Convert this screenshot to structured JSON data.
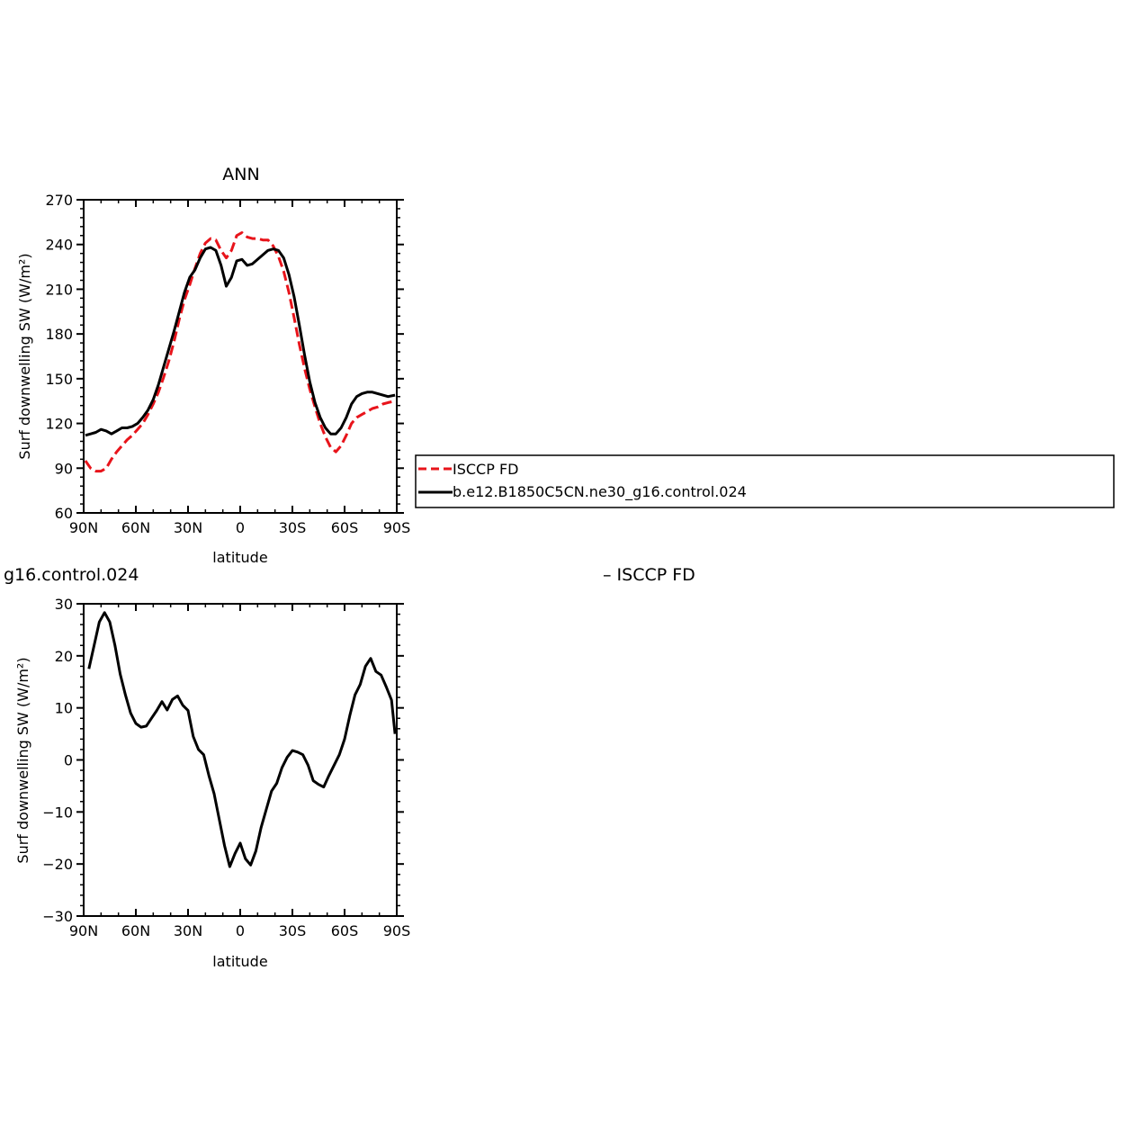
{
  "chart_data": [
    {
      "type": "line",
      "title": "ANN",
      "xlabel": "latitude",
      "ylabel": "Surf downwelling SW (W/m²)",
      "xlim": [
        -90,
        90
      ],
      "ylim": [
        60,
        270
      ],
      "x_ticks": [
        {
          "value": -90,
          "label": "90N"
        },
        {
          "value": -60,
          "label": "60N"
        },
        {
          "value": -30,
          "label": "30N"
        },
        {
          "value": 0,
          "label": "0"
        },
        {
          "value": 30,
          "label": "30S"
        },
        {
          "value": 60,
          "label": "60S"
        },
        {
          "value": 90,
          "label": "90S"
        }
      ],
      "y_ticks": [
        {
          "value": 60,
          "label": "60"
        },
        {
          "value": 90,
          "label": "90"
        },
        {
          "value": 120,
          "label": "120"
        },
        {
          "value": 150,
          "label": "150"
        },
        {
          "value": 180,
          "label": "180"
        },
        {
          "value": 210,
          "label": "210"
        },
        {
          "value": 240,
          "label": "240"
        },
        {
          "value": 270,
          "label": "270"
        }
      ],
      "legend_position": "right",
      "series": [
        {
          "name": "ISCCP FD",
          "color": "#e8141b",
          "dash": true,
          "x": [
            -89,
            -86,
            -83,
            -80,
            -77,
            -74,
            -71,
            -68,
            -65,
            -62,
            -59,
            -56,
            -53,
            -50,
            -47,
            -44,
            -41,
            -38,
            -35,
            -32,
            -29,
            -26,
            -23,
            -20,
            -17,
            -14,
            -11,
            -8,
            -5,
            -2,
            1,
            4,
            7,
            10,
            13,
            16,
            19,
            22,
            25,
            28,
            31,
            34,
            37,
            40,
            43,
            46,
            49,
            52,
            55,
            58,
            61,
            64,
            67,
            70,
            73,
            76,
            79,
            82,
            85,
            89
          ],
          "y": [
            95,
            90,
            88,
            88,
            90,
            96,
            101,
            105,
            109,
            112,
            116,
            120,
            126,
            133,
            141,
            151,
            162,
            175,
            190,
            203,
            213,
            224,
            234,
            241,
            244,
            243,
            236,
            231,
            236,
            246,
            248,
            245,
            244,
            244,
            243,
            243,
            239,
            232,
            222,
            208,
            191,
            173,
            157,
            143,
            131,
            120,
            111,
            104,
            101,
            105,
            112,
            120,
            124,
            126,
            128,
            130,
            131,
            133,
            134,
            135
          ]
        },
        {
          "name": "b.e12.B1850C5CN.ne30_g16.control.024",
          "color": "#000000",
          "dash": false,
          "x": [
            -89,
            -86,
            -83,
            -80,
            -77,
            -74,
            -71,
            -68,
            -65,
            -62,
            -59,
            -56,
            -53,
            -50,
            -47,
            -44,
            -41,
            -38,
            -35,
            -32,
            -29,
            -26,
            -23,
            -20,
            -17,
            -14,
            -11,
            -8,
            -5,
            -2,
            1,
            4,
            7,
            10,
            13,
            16,
            19,
            22,
            25,
            28,
            31,
            34,
            37,
            40,
            43,
            46,
            49,
            52,
            55,
            58,
            61,
            64,
            67,
            70,
            73,
            76,
            79,
            82,
            85,
            89
          ],
          "y": [
            112,
            113,
            114,
            116,
            115,
            113,
            115,
            117,
            117,
            118,
            120,
            124,
            129,
            136,
            146,
            158,
            170,
            182,
            195,
            208,
            218,
            223,
            231,
            237,
            238,
            236,
            226,
            212,
            218,
            229,
            230,
            226,
            227,
            230,
            233,
            236,
            237,
            236,
            231,
            220,
            205,
            186,
            166,
            148,
            134,
            124,
            117,
            113,
            113,
            117,
            124,
            133,
            138,
            140,
            141,
            141,
            140,
            139,
            138,
            139
          ]
        }
      ]
    },
    {
      "type": "line",
      "title": "g16.control.024 − ISCCP FD",
      "xlabel": "latitude",
      "ylabel": "Surf downwelling SW (W/m²)",
      "xlim": [
        -90,
        90
      ],
      "ylim": [
        -30,
        30
      ],
      "x_ticks": [
        {
          "value": -90,
          "label": "90N"
        },
        {
          "value": -60,
          "label": "60N"
        },
        {
          "value": -30,
          "label": "30N"
        },
        {
          "value": 0,
          "label": "0"
        },
        {
          "value": 30,
          "label": "30S"
        },
        {
          "value": 60,
          "label": "60S"
        },
        {
          "value": 90,
          "label": "90S"
        }
      ],
      "y_ticks": [
        {
          "value": -30,
          "label": "−30"
        },
        {
          "value": -20,
          "label": "−20"
        },
        {
          "value": -10,
          "label": "−10"
        },
        {
          "value": 0,
          "label": "0"
        },
        {
          "value": 10,
          "label": "10"
        },
        {
          "value": 20,
          "label": "20"
        },
        {
          "value": 30,
          "label": "30"
        }
      ],
      "series": [
        {
          "color": "#000000",
          "dash": false,
          "x": [
            -87,
            -84,
            -81,
            -78,
            -75,
            -72,
            -69,
            -66,
            -63,
            -60,
            -57,
            -54,
            -51,
            -48,
            -45,
            -42,
            -39,
            -36,
            -33,
            -30,
            -27,
            -24,
            -21,
            -18,
            -15,
            -12,
            -9,
            -6,
            -3,
            0,
            3,
            6,
            9,
            12,
            15,
            18,
            21,
            24,
            27,
            30,
            33,
            36,
            39,
            42,
            45,
            48,
            51,
            54,
            57,
            60,
            63,
            66,
            69,
            72,
            75,
            78,
            81,
            84,
            87,
            89
          ],
          "y": [
            17.5,
            22,
            26.5,
            28.3,
            26.5,
            22,
            16.5,
            12.5,
            9,
            7,
            6.3,
            6.5,
            8,
            9.5,
            11.2,
            9.6,
            11.6,
            12.3,
            10.5,
            9.5,
            4.5,
            2,
            1,
            -3,
            -6.5,
            -11.5,
            -16.5,
            -20.5,
            -18,
            -16,
            -19,
            -20.2,
            -17.5,
            -13,
            -9.5,
            -6,
            -4.5,
            -1.5,
            0.5,
            1.8,
            1.5,
            1,
            -1,
            -4,
            -4.7,
            -5.2,
            -3,
            -1,
            1,
            4,
            8.5,
            12.5,
            14.5,
            18,
            19.5,
            17,
            16.3,
            14,
            11.5,
            5
          ]
        }
      ]
    }
  ]
}
